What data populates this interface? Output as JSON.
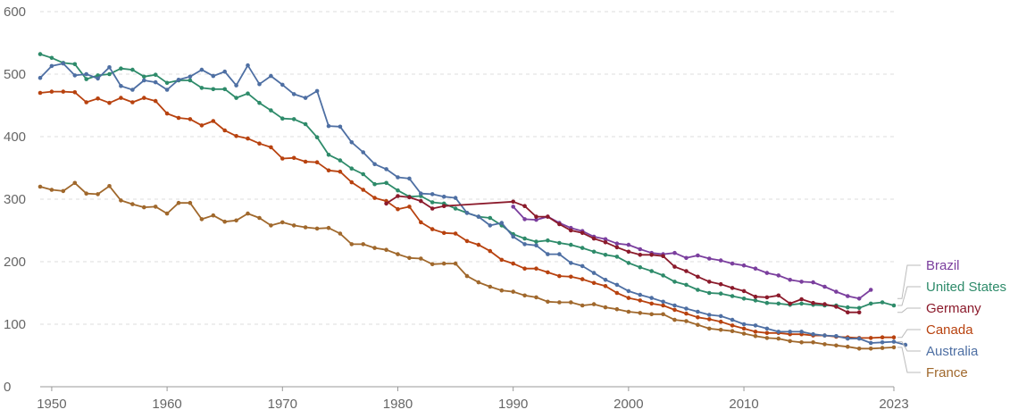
{
  "chart_data": {
    "type": "line",
    "title": "",
    "xlabel": "",
    "ylabel": "",
    "xlim": [
      1949,
      2023
    ],
    "ylim": [
      0,
      600
    ],
    "x_ticks": [
      1950,
      1960,
      1970,
      1980,
      1990,
      2000,
      2010,
      2023
    ],
    "x_tick_labels": [
      "1950",
      "1960",
      "1970",
      "1980",
      "1990",
      "2000",
      "2010",
      "2023"
    ],
    "y_ticks": [
      0,
      100,
      200,
      300,
      400,
      500,
      600
    ],
    "y_tick_labels": [
      "0",
      "100",
      "200",
      "300",
      "400",
      "500",
      "600"
    ],
    "grid": "horizontal dashed",
    "legend_placement": "right",
    "series": [
      {
        "name": "Brazil",
        "color": "#7b3f9e",
        "x": [
          1990,
          1991,
          1992,
          1993,
          1994,
          1995,
          1996,
          1997,
          1998,
          1999,
          2000,
          2001,
          2002,
          2003,
          2004,
          2005,
          2006,
          2007,
          2008,
          2009,
          2010,
          2011,
          2012,
          2013,
          2014,
          2015,
          2016,
          2017,
          2018,
          2019,
          2020
        ],
        "values": [
          288,
          268,
          267,
          272,
          262,
          254,
          249,
          240,
          236,
          229,
          227,
          220,
          214,
          212,
          214,
          206,
          210,
          205,
          202,
          197,
          194,
          189,
          182,
          178,
          171,
          168,
          167,
          160,
          152,
          145,
          141
        ]
      },
      {
        "name": "United States",
        "color": "#2e8b6a",
        "x": [
          1949,
          1950,
          1951,
          1952,
          1953,
          1954,
          1955,
          1956,
          1957,
          1958,
          1959,
          1960,
          1961,
          1962,
          1963,
          1964,
          1965,
          1966,
          1967,
          1968,
          1969,
          1970,
          1971,
          1972,
          1973,
          1974,
          1975,
          1976,
          1977,
          1978,
          1979,
          1980,
          1981,
          1982,
          1983,
          1984,
          1985,
          1986,
          1987,
          1988,
          1989,
          1990,
          1991,
          1992,
          1993,
          1994,
          1995,
          1996,
          1997,
          1998,
          1999,
          2000,
          2001,
          2002,
          2003,
          2004,
          2005,
          2006,
          2007,
          2008,
          2009,
          2010,
          2011,
          2012,
          2013,
          2014,
          2015,
          2016,
          2017,
          2018,
          2019,
          2020,
          2021,
          2022,
          2023
        ],
        "values": [
          532,
          526,
          518,
          516,
          492,
          498,
          500,
          509,
          507,
          496,
          499,
          486,
          490,
          490,
          478,
          476,
          476,
          462,
          469,
          454,
          442,
          429,
          428,
          420,
          399,
          371,
          362,
          349,
          340,
          324,
          326,
          314,
          304,
          305,
          295,
          293,
          285,
          278,
          272,
          270,
          258,
          244,
          237,
          232,
          234,
          230,
          227,
          222,
          216,
          211,
          208,
          198,
          191,
          185,
          178,
          168,
          163,
          155,
          150,
          149,
          145,
          141,
          138,
          134,
          133,
          131,
          133,
          131,
          130,
          130,
          127,
          126,
          133,
          135,
          130
        ]
      },
      {
        "name": "Germany",
        "color": "#8b1a2b",
        "x": [
          1990,
          1991,
          1992,
          1993,
          1994,
          1995,
          1996,
          1997,
          1998,
          1999,
          2000,
          2001,
          2002,
          2003,
          2004,
          2005,
          2006,
          2007,
          2008,
          2009,
          2010,
          2011,
          2012,
          2013,
          2014,
          2015,
          2016,
          2017,
          2018,
          2019,
          2020
        ],
        "values": [
          296,
          289,
          272,
          272,
          260,
          250,
          246,
          237,
          231,
          223,
          216,
          211,
          211,
          209,
          192,
          185,
          176,
          168,
          164,
          158,
          153,
          144,
          143,
          146,
          133,
          140,
          134,
          132,
          128,
          119,
          119
        ]
      },
      {
        "name": "Canada",
        "color": "#b8420f",
        "x": [
          1949,
          1950,
          1951,
          1952,
          1953,
          1954,
          1955,
          1956,
          1957,
          1958,
          1959,
          1960,
          1961,
          1962,
          1963,
          1964,
          1965,
          1966,
          1967,
          1968,
          1969,
          1970,
          1971,
          1972,
          1973,
          1974,
          1975,
          1976,
          1977,
          1978,
          1979,
          1980,
          1981,
          1982,
          1983,
          1984,
          1985,
          1986,
          1987,
          1988,
          1989,
          1990,
          1991,
          1992,
          1993,
          1994,
          1995,
          1996,
          1997,
          1998,
          1999,
          2000,
          2001,
          2002,
          2003,
          2004,
          2005,
          2006,
          2007,
          2008,
          2009,
          2010,
          2011,
          2012,
          2013,
          2014,
          2015,
          2016,
          2017,
          2018,
          2019,
          2020,
          2021,
          2022,
          2023
        ],
        "values": [
          470,
          472,
          472,
          471,
          455,
          461,
          454,
          462,
          455,
          462,
          457,
          437,
          430,
          428,
          418,
          425,
          410,
          401,
          397,
          389,
          383,
          365,
          366,
          360,
          359,
          346,
          344,
          327,
          315,
          302,
          297,
          284,
          288,
          263,
          252,
          246,
          245,
          233,
          227,
          217,
          203,
          197,
          189,
          189,
          183,
          177,
          176,
          172,
          166,
          161,
          150,
          142,
          138,
          133,
          130,
          123,
          117,
          111,
          108,
          104,
          98,
          93,
          88,
          86,
          86,
          84,
          84,
          82,
          82,
          80,
          79,
          78,
          78,
          79,
          79
        ]
      },
      {
        "name": "Australia",
        "color": "#4e6fa3",
        "x": [
          1949,
          1950,
          1951,
          1952,
          1953,
          1954,
          1955,
          1956,
          1957,
          1958,
          1959,
          1960,
          1961,
          1962,
          1963,
          1964,
          1965,
          1966,
          1967,
          1968,
          1969,
          1970,
          1971,
          1972,
          1973,
          1974,
          1975,
          1976,
          1977,
          1978,
          1979,
          1980,
          1981,
          1982,
          1983,
          1984,
          1985,
          1986,
          1987,
          1988,
          1989,
          1990,
          1991,
          1992,
          1993,
          1994,
          1995,
          1996,
          1997,
          1998,
          1999,
          2000,
          2001,
          2002,
          2003,
          2004,
          2005,
          2006,
          2007,
          2008,
          2009,
          2010,
          2011,
          2012,
          2013,
          2014,
          2015,
          2016,
          2017,
          2018,
          2019,
          2020,
          2021,
          2022,
          2023
        ],
        "values": [
          494,
          513,
          517,
          498,
          500,
          493,
          511,
          481,
          475,
          490,
          487,
          475,
          491,
          496,
          507,
          497,
          504,
          482,
          514,
          484,
          497,
          483,
          468,
          462,
          473,
          417,
          416,
          391,
          375,
          356,
          348,
          335,
          333,
          309,
          308,
          304,
          302,
          278,
          272,
          258,
          262,
          240,
          228,
          226,
          212,
          212,
          198,
          193,
          182,
          171,
          163,
          153,
          147,
          142,
          136,
          130,
          125,
          120,
          115,
          113,
          107,
          100,
          98,
          93,
          88,
          88,
          88,
          84,
          82,
          81,
          77,
          77,
          70,
          71,
          72
        ]
      },
      {
        "name": "France",
        "color": "#a0682c",
        "x": [
          1949,
          1950,
          1951,
          1952,
          1953,
          1954,
          1955,
          1956,
          1957,
          1958,
          1959,
          1960,
          1961,
          1962,
          1963,
          1964,
          1965,
          1966,
          1967,
          1968,
          1969,
          1970,
          1971,
          1972,
          1973,
          1974,
          1975,
          1976,
          1977,
          1978,
          1979,
          1980,
          1981,
          1982,
          1983,
          1984,
          1985,
          1986,
          1987,
          1988,
          1989,
          1990,
          1991,
          1992,
          1993,
          1994,
          1995,
          1996,
          1997,
          1998,
          1999,
          2000,
          2001,
          2002,
          2003,
          2004,
          2005,
          2006,
          2007,
          2008,
          2009,
          2010,
          2011,
          2012,
          2013,
          2014,
          2015,
          2016,
          2017,
          2018,
          2019,
          2020,
          2021,
          2022,
          2023
        ],
        "values": [
          320,
          315,
          313,
          326,
          309,
          308,
          321,
          298,
          292,
          287,
          288,
          277,
          294,
          294,
          268,
          274,
          264,
          266,
          277,
          270,
          258,
          263,
          258,
          255,
          253,
          254,
          245,
          228,
          228,
          222,
          219,
          212,
          206,
          205,
          196,
          197,
          197,
          177,
          167,
          160,
          154,
          152,
          146,
          143,
          136,
          135,
          135,
          130,
          132,
          127,
          124,
          120,
          118,
          116,
          116,
          107,
          105,
          99,
          93,
          91,
          89,
          85,
          81,
          78,
          77,
          73,
          71,
          71,
          68,
          66,
          64,
          61,
          61,
          62,
          63
        ]
      }
    ],
    "endpoint_series": [
      {
        "series": "Brazil",
        "x": [
          2021
        ],
        "values": [
          155
        ]
      },
      {
        "series": "Germany",
        "x": [
          1979,
          1980,
          1981,
          1982,
          1983,
          1984
        ],
        "values": [
          293,
          305,
          303,
          297,
          285,
          289
        ]
      },
      {
        "series": "Australia",
        "x": [
          2024
        ],
        "values": [
          67
        ]
      }
    ]
  }
}
